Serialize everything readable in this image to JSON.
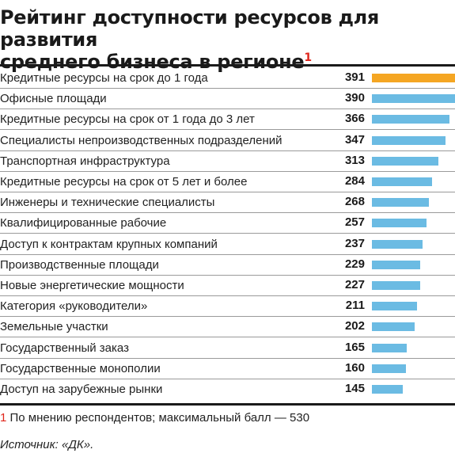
{
  "title": {
    "line1": "Рейтинг доступности ресурсов для развития",
    "line2": "среднего бизнеса в регионе",
    "footnote_mark": "1"
  },
  "colors": {
    "highlight": "#f5a623",
    "bar": "#6bbbe3"
  },
  "chart_data": {
    "type": "bar",
    "orientation": "horizontal",
    "title": "Рейтинг доступности ресурсов для развития среднего бизнеса в регионе",
    "xlim": [
      0,
      391
    ],
    "grid": false,
    "categories": [
      "Кредитные ресурсы на срок до 1 года",
      "Офисные площади",
      "Кредитные ресурсы на срок от 1 года до 3 лет",
      "Специалисты непроизводственных подразделений",
      "Транспортная инфраструктура",
      "Кредитные ресурсы на срок от 5 лет и более",
      "Инженеры и технические специалисты",
      "Квалифицированные рабочие",
      "Доступ к контрактам крупных компаний",
      "Производственные площади",
      "Новые энергетические мощности",
      "Категория «руководители»",
      "Земельные участки",
      "Государственный заказ",
      "Государственные монополии",
      "Доступ на зарубежные рынки"
    ],
    "values": [
      391,
      390,
      366,
      347,
      313,
      284,
      268,
      257,
      237,
      229,
      227,
      211,
      202,
      165,
      160,
      145
    ],
    "highlight_index": 0
  },
  "footnote": {
    "number": "1",
    "text": "По мнению респондентов; максимальный балл — 530"
  },
  "source": "Источник: «ДК»."
}
